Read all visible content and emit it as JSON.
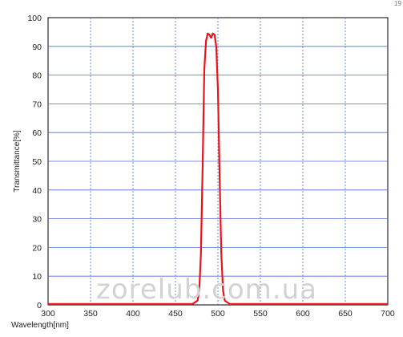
{
  "chart_data": {
    "type": "line",
    "xlabel": "Wavelength[nm]",
    "ylabel": "Transmittance[%]",
    "xlim": [
      300,
      700
    ],
    "ylim": [
      0,
      100
    ],
    "x_ticks": [
      300,
      350,
      400,
      450,
      500,
      550,
      600,
      650,
      700
    ],
    "y_ticks": [
      0,
      10,
      20,
      30,
      40,
      50,
      60,
      70,
      80,
      90,
      100
    ],
    "grid": true,
    "series": [
      {
        "color": "#e8141c",
        "x": [
          300,
          470,
          476,
          478,
          480,
          482,
          484,
          486,
          488,
          490,
          492,
          494,
          496,
          498,
          500,
          502,
          504,
          506,
          508,
          514,
          700
        ],
        "y": [
          0.3,
          0.3,
          1.5,
          5,
          18,
          48,
          82,
          92,
          94.5,
          94,
          93,
          94.5,
          94,
          90,
          75,
          45,
          18,
          5,
          1.5,
          0.3,
          0.3
        ]
      }
    ]
  },
  "watermark": "zorelub.com.ua",
  "corner_mark": "19"
}
